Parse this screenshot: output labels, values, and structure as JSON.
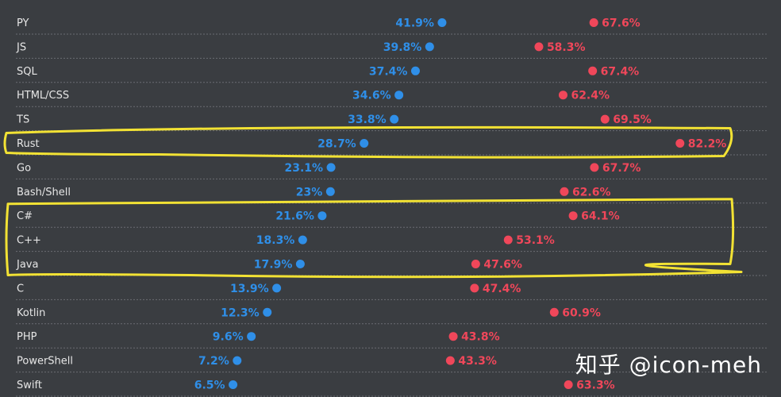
{
  "chart_data": {
    "type": "dumbbell",
    "title": "",
    "xlim": [
      0,
      100
    ],
    "colors": {
      "low": "#2f8fe8",
      "high": "#f0475a",
      "label": "#e6e6e6",
      "grid": "#6a6d72"
    },
    "series_names": [
      "low",
      "high"
    ],
    "categories": [
      "PY",
      "JS",
      "SQL",
      "HTML/CSS",
      "TS",
      "Rust",
      "Go",
      "Bash/Shell",
      "C#",
      "C++",
      "Java",
      "C",
      "Kotlin",
      "PHP",
      "PowerShell",
      "Swift"
    ],
    "low_values": [
      41.9,
      39.8,
      37.4,
      34.6,
      33.8,
      28.7,
      23.1,
      23,
      21.6,
      18.3,
      17.9,
      13.9,
      12.3,
      9.6,
      7.2,
      6.5
    ],
    "high_values": [
      67.6,
      58.3,
      67.4,
      62.4,
      69.5,
      82.2,
      67.7,
      62.6,
      64.1,
      53.1,
      47.6,
      47.4,
      60.9,
      43.8,
      43.3,
      63.3
    ],
    "low_labels": [
      "41.9%",
      "39.8%",
      "37.4%",
      "34.6%",
      "33.8%",
      "28.7%",
      "23.1%",
      "23%",
      "21.6%",
      "18.3%",
      "17.9%",
      "13.9%",
      "12.3%",
      "9.6%",
      "7.2%",
      "6.5%"
    ],
    "high_labels": [
      "67.6%",
      "58.3%",
      "67.4%",
      "62.4%",
      "69.5%",
      "82.2%",
      "67.7%",
      "62.6%",
      "64.1%",
      "53.1%",
      "47.6%",
      "47.4%",
      "60.9%",
      "43.8%",
      "43.3%",
      "63.3%"
    ],
    "annotations": [
      {
        "kind": "highlight-box",
        "color": "#f2e234",
        "categories": [
          "Rust"
        ]
      },
      {
        "kind": "highlight-box",
        "color": "#f2e234",
        "categories": [
          "C#",
          "C++",
          "Java"
        ]
      }
    ]
  },
  "watermark": "知乎 @icon-meh"
}
